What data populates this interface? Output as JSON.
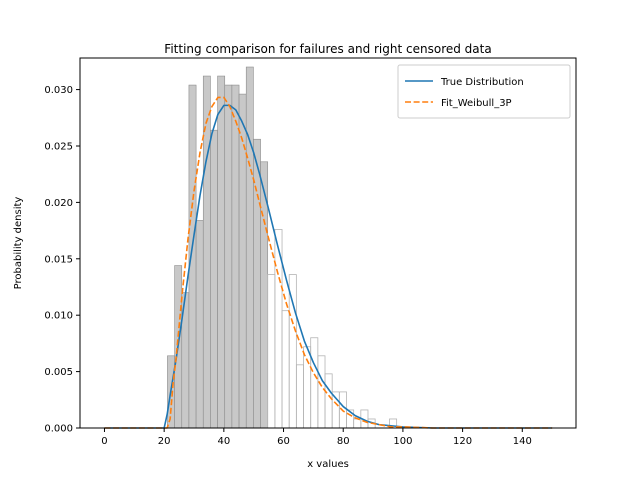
{
  "chart_data": {
    "type": "histogram-line",
    "title": "Fitting comparison for failures and right censored data",
    "xlabel": "x values",
    "ylabel": "Probability density",
    "xlim": [
      -8.2,
      158
    ],
    "ylim": [
      0,
      0.0328
    ],
    "xticks": [
      0,
      20,
      40,
      60,
      80,
      100,
      120,
      140
    ],
    "yticks": [
      0.0,
      0.005,
      0.01,
      0.015,
      0.02,
      0.025,
      0.03
    ],
    "ytick_labels": [
      "0.000",
      "0.005",
      "0.010",
      "0.015",
      "0.020",
      "0.025",
      "0.030"
    ],
    "grid": false,
    "legend_position": "top-right",
    "histogram_failures": {
      "bin_edges": [
        21.1,
        23.5,
        25.9,
        28.3,
        30.7,
        33.1,
        35.5,
        37.9,
        40.3,
        42.7,
        45.1,
        47.5,
        49.9,
        52.3,
        54.7
      ],
      "values": [
        0.0064,
        0.0144,
        0.012,
        0.0304,
        0.0184,
        0.0312,
        0.0264,
        0.0312,
        0.0304,
        0.0304,
        0.0296,
        0.032,
        0.0256,
        0.0236
      ],
      "color": "#c8c8c8",
      "edge": "#8c8c8c"
    },
    "histogram_censored": {
      "bin_edges": [
        54.7,
        57.1,
        59.5,
        61.9,
        64.3,
        66.7,
        69.1,
        71.5,
        73.9,
        76.3,
        78.7,
        81.1,
        83.5,
        85.9,
        88.3,
        90.7,
        93.1,
        95.5,
        97.9
      ],
      "values": [
        0.0136,
        0.0176,
        0.0104,
        0.0136,
        0.0056,
        0.0072,
        0.008,
        0.0064,
        0.0048,
        0.0032,
        0.0032,
        0.0016,
        0.0008,
        0.0016,
        0.0008,
        0.0,
        0.0,
        0.0008
      ],
      "edge": "#b4b4b4"
    },
    "series": [
      {
        "name": "True Distribution",
        "color": "#1f77b4",
        "dash": "solid",
        "x": [
          0,
          20,
          21,
          22,
          24,
          26,
          28,
          30,
          32,
          34,
          36,
          38,
          40,
          42,
          44,
          46,
          48,
          50,
          52,
          55,
          58,
          61,
          64,
          67,
          70,
          73,
          76,
          80,
          84,
          88,
          92,
          96,
          100,
          110,
          120,
          150
        ],
        "y": [
          0,
          0,
          0.0012,
          0.0029,
          0.0061,
          0.0097,
          0.0135,
          0.0171,
          0.0206,
          0.0236,
          0.0261,
          0.0278,
          0.0286,
          0.0286,
          0.0282,
          0.0272,
          0.026,
          0.0244,
          0.0225,
          0.0194,
          0.0162,
          0.0131,
          0.0102,
          0.0077,
          0.0058,
          0.0042,
          0.0031,
          0.0019,
          0.0011,
          0.0006,
          0.0003,
          0.0002,
          0.0001,
          0,
          0,
          0
        ]
      },
      {
        "name": "Fit_Weibull_3P",
        "color": "#ff7f0e",
        "dash": "dashed",
        "x": [
          0,
          21,
          22,
          23,
          24,
          26,
          28,
          30,
          32,
          34,
          36,
          38,
          40,
          42,
          44,
          46,
          48,
          50,
          52,
          55,
          58,
          61,
          64,
          67,
          70,
          73,
          76,
          80,
          84,
          88,
          92,
          96,
          100,
          110,
          120,
          150
        ],
        "y": [
          0,
          0,
          0.0008,
          0.004,
          0.0062,
          0.0118,
          0.0168,
          0.021,
          0.0244,
          0.027,
          0.0285,
          0.0293,
          0.0293,
          0.0285,
          0.0272,
          0.0257,
          0.0239,
          0.022,
          0.0199,
          0.0168,
          0.0138,
          0.011,
          0.0086,
          0.0065,
          0.0049,
          0.0036,
          0.0026,
          0.0015,
          0.0009,
          0.0005,
          0.0003,
          0.0001,
          0.0001,
          0,
          0,
          0
        ]
      }
    ]
  }
}
